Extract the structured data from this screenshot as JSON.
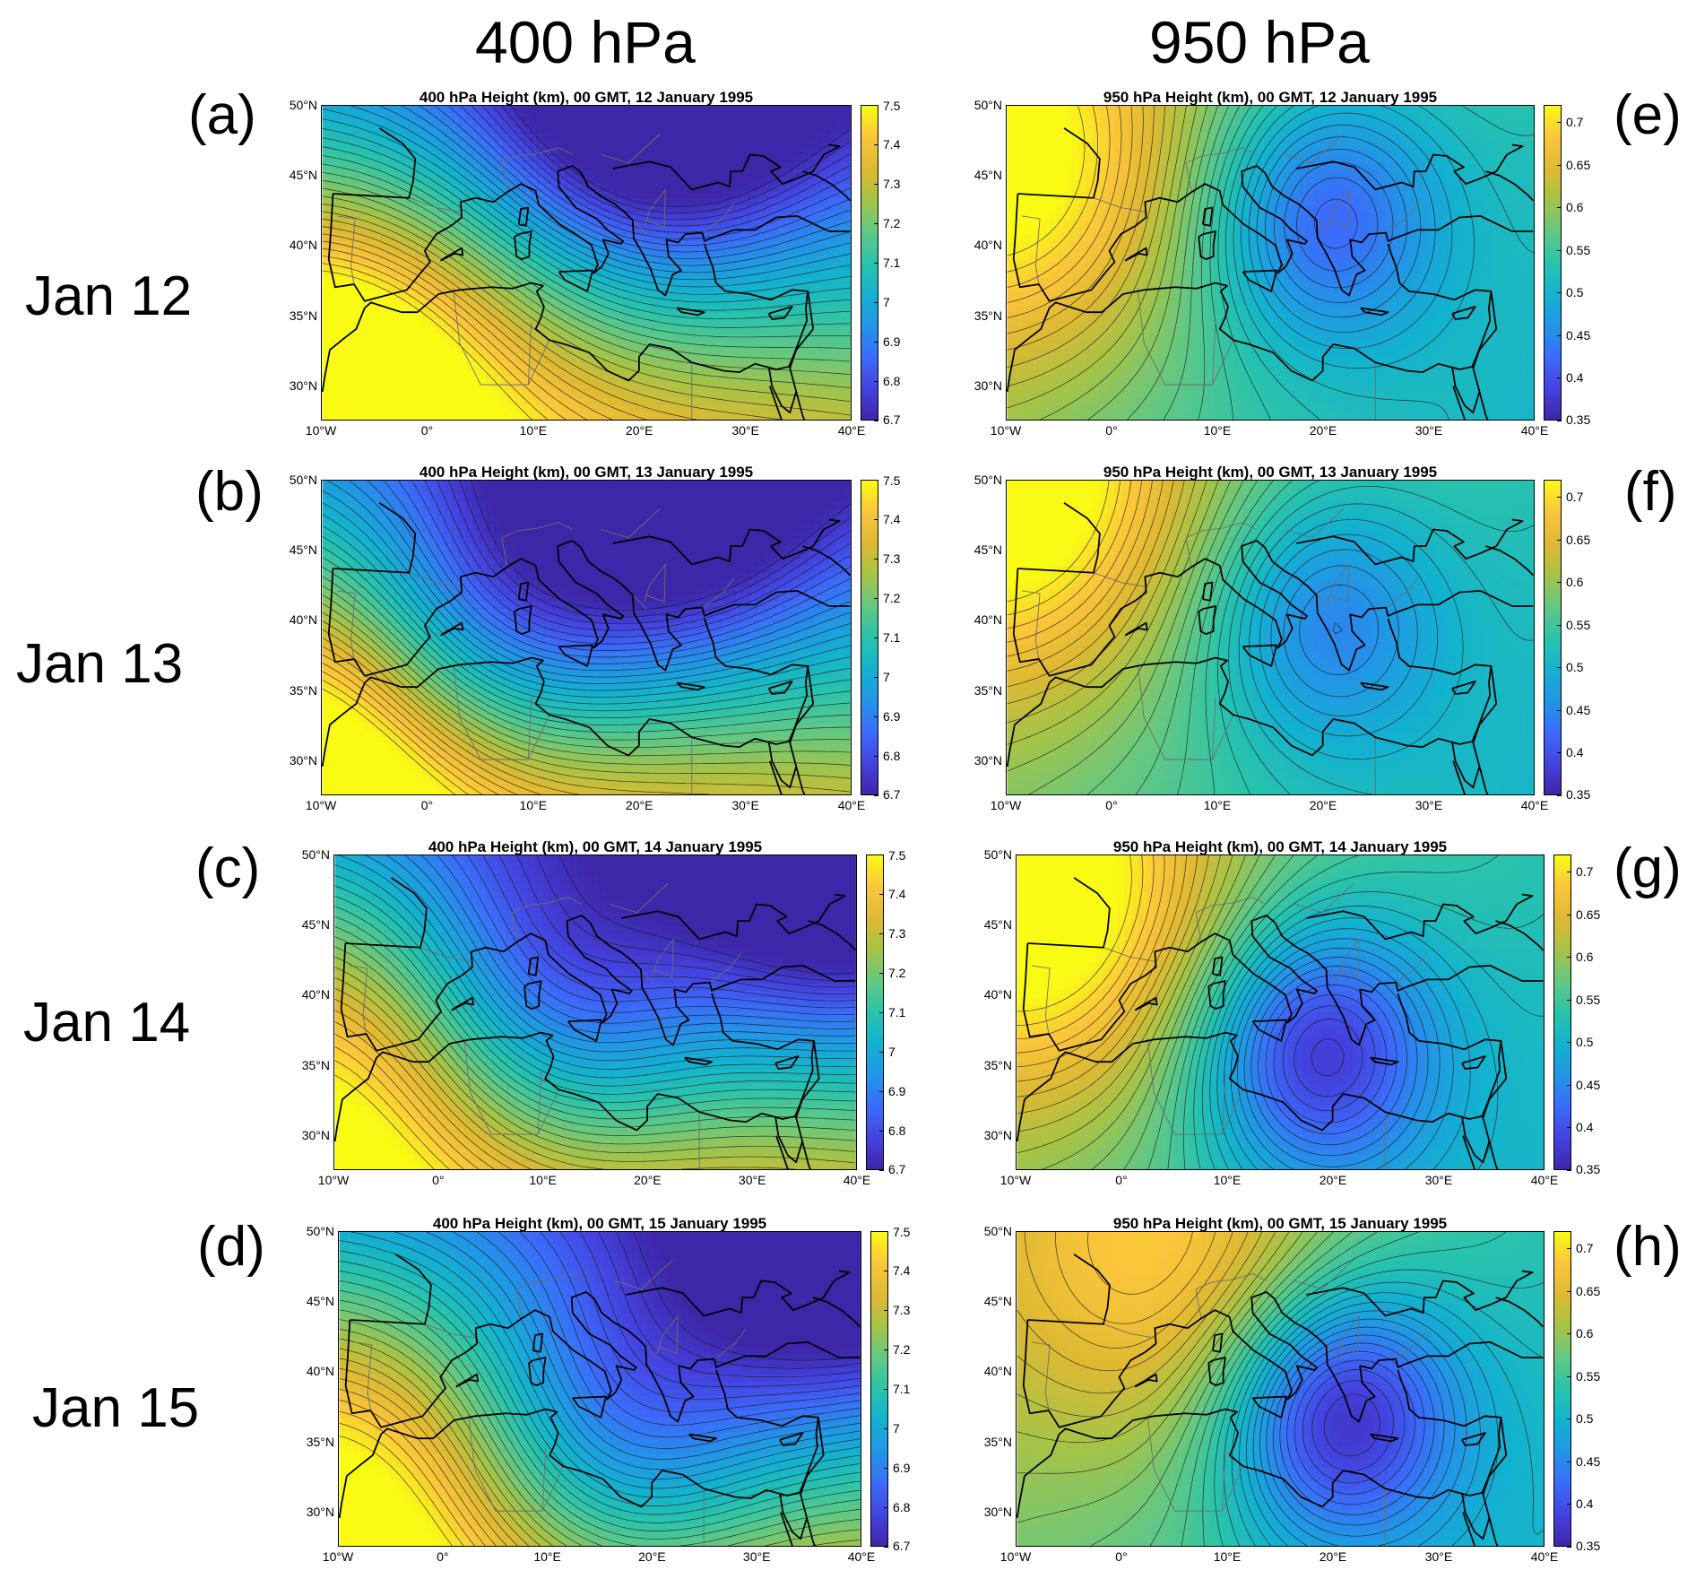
{
  "column_titles": [
    "400 hPa",
    "950 hPa"
  ],
  "row_labels": [
    "Jan 12",
    "Jan 13",
    "Jan 14",
    "Jan 15"
  ],
  "colors": {
    "colormap": [
      "#3e26a8",
      "#4443e0",
      "#3b6cf9",
      "#2296e6",
      "#13b2cf",
      "#2ac3ab",
      "#64c882",
      "#a6c347",
      "#dfb933",
      "#fbc63b",
      "#f9fb15"
    ],
    "contour": "#1a1a1a",
    "coast": "#000000",
    "border": "#6e6e6e"
  },
  "chart_data": [
    {
      "id": "a",
      "letter": "(a)",
      "level": "400",
      "title": "400 hPa Height (km), 00 GMT, 12 January 1995",
      "type": "heatmap",
      "variable": "geopotential height",
      "units": "km",
      "xlim": [
        -10,
        40
      ],
      "ylim": [
        27.5,
        50
      ],
      "x_ticks": [
        "10°W",
        "0°",
        "10°E",
        "20°E",
        "30°E",
        "40°E"
      ],
      "y_ticks": [
        "30°N",
        "35°N",
        "40°N",
        "45°N",
        "50°N"
      ],
      "clim": [
        6.7,
        7.5
      ],
      "colorbar_ticks": [
        "6.7",
        "6.8",
        "6.9",
        "7",
        "7.1",
        "7.2",
        "7.3",
        "7.4",
        "7.5"
      ],
      "features": [
        {
          "kind": "low",
          "lon": 22,
          "lat": 51,
          "value": 6.7
        },
        {
          "kind": "high",
          "lon": -10,
          "lat": 30,
          "value": 7.5
        }
      ]
    },
    {
      "id": "b",
      "letter": "(b)",
      "level": "400",
      "title": "400 hPa Height (km), 00 GMT, 13 January 1995",
      "type": "heatmap",
      "variable": "geopotential height",
      "units": "km",
      "xlim": [
        -10,
        40
      ],
      "ylim": [
        27.5,
        50
      ],
      "x_ticks": [
        "10°W",
        "0°",
        "10°E",
        "20°E",
        "30°E",
        "40°E"
      ],
      "y_ticks": [
        "30°N",
        "35°N",
        "40°N",
        "45°N",
        "50°N"
      ],
      "clim": [
        6.7,
        7.5
      ],
      "colorbar_ticks": [
        "6.7",
        "6.8",
        "6.9",
        "7",
        "7.1",
        "7.2",
        "7.3",
        "7.4",
        "7.5"
      ],
      "features": [
        {
          "kind": "low",
          "lon": 22,
          "lat": 49,
          "value": 6.72
        },
        {
          "kind": "trough",
          "lon": 5,
          "lat": 39,
          "value": 6.9
        },
        {
          "kind": "high",
          "lon": -10,
          "lat": 31,
          "value": 7.42
        }
      ]
    },
    {
      "id": "c",
      "letter": "(c)",
      "level": "400",
      "title": "400 hPa Height (km), 00 GMT, 14 January 1995",
      "type": "heatmap",
      "variable": "geopotential height",
      "units": "km",
      "xlim": [
        -10,
        40
      ],
      "ylim": [
        27.5,
        50
      ],
      "x_ticks": [
        "10°W",
        "0°",
        "10°E",
        "20°E",
        "30°E",
        "40°E"
      ],
      "y_ticks": [
        "30°N",
        "35°N",
        "40°N",
        "45°N",
        "50°N"
      ],
      "clim": [
        6.7,
        7.5
      ],
      "colorbar_ticks": [
        "6.7",
        "6.8",
        "6.9",
        "7",
        "7.1",
        "7.2",
        "7.3",
        "7.4",
        "7.5"
      ],
      "features": [
        {
          "kind": "low",
          "lon": 11,
          "lat": 40,
          "value": 6.85
        },
        {
          "kind": "low",
          "lon": 38,
          "lat": 50,
          "value": 6.75
        },
        {
          "kind": "high",
          "lon": -9,
          "lat": 36,
          "value": 7.35
        }
      ]
    },
    {
      "id": "d",
      "letter": "(d)",
      "level": "400",
      "title": "400 hPa Height (km), 00 GMT, 15 January 1995",
      "type": "heatmap",
      "variable": "geopotential height",
      "units": "km",
      "xlim": [
        -10,
        40
      ],
      "ylim": [
        27.5,
        50
      ],
      "x_ticks": [
        "10°W",
        "0°",
        "10°E",
        "20°E",
        "30°E",
        "40°E"
      ],
      "y_ticks": [
        "30°N",
        "35°N",
        "40°N",
        "45°N",
        "50°N"
      ],
      "clim": [
        6.7,
        7.5
      ],
      "colorbar_ticks": [
        "6.7",
        "6.8",
        "6.9",
        "7",
        "7.1",
        "7.2",
        "7.3",
        "7.4",
        "7.5"
      ],
      "features": [
        {
          "kind": "low",
          "lon": 17,
          "lat": 35,
          "value": 6.85
        },
        {
          "kind": "low",
          "lon": 38,
          "lat": 49,
          "value": 6.78
        },
        {
          "kind": "high",
          "lon": -9,
          "lat": 34,
          "value": 7.35
        }
      ]
    },
    {
      "id": "e",
      "letter": "(e)",
      "level": "950",
      "title": "950 hPa Height (km), 00 GMT, 12 January 1995",
      "type": "heatmap",
      "variable": "geopotential height",
      "units": "km",
      "xlim": [
        -10,
        40
      ],
      "ylim": [
        27.5,
        50
      ],
      "x_ticks": [
        "10°W",
        "0°",
        "10°E",
        "20°E",
        "30°E",
        "40°E"
      ],
      "y_ticks": [
        "30°N",
        "35°N",
        "40°N",
        "45°N",
        "50°N"
      ],
      "clim": [
        0.35,
        0.72
      ],
      "colorbar_ticks": [
        "0.35",
        "0.4",
        "0.45",
        "0.5",
        "0.55",
        "0.6",
        "0.65",
        "0.7"
      ],
      "features": [
        {
          "kind": "low",
          "lon": 20,
          "lat": 42,
          "value": 0.42
        },
        {
          "kind": "high",
          "lon": -10,
          "lat": 46,
          "value": 0.7
        }
      ]
    },
    {
      "id": "f",
      "letter": "(f)",
      "level": "950",
      "title": "950 hPa Height (km), 00 GMT, 13 January 1995",
      "type": "heatmap",
      "variable": "geopotential height",
      "units": "km",
      "xlim": [
        -10,
        40
      ],
      "ylim": [
        27.5,
        50
      ],
      "x_ticks": [
        "10°W",
        "0°",
        "10°E",
        "20°E",
        "30°E",
        "40°E"
      ],
      "y_ticks": [
        "30°N",
        "35°N",
        "40°N",
        "45°N",
        "50°N"
      ],
      "clim": [
        0.35,
        0.72
      ],
      "colorbar_ticks": [
        "0.35",
        "0.4",
        "0.45",
        "0.5",
        "0.55",
        "0.6",
        "0.65",
        "0.7"
      ],
      "features": [
        {
          "kind": "low",
          "lon": 20,
          "lat": 40,
          "value": 0.45
        },
        {
          "kind": "high",
          "lon": -10,
          "lat": 50,
          "value": 0.72
        }
      ]
    },
    {
      "id": "g",
      "letter": "(g)",
      "level": "950",
      "title": "950 hPa Height (km), 00 GMT, 14 January 1995",
      "type": "heatmap",
      "variable": "geopotential height",
      "units": "km",
      "xlim": [
        -10,
        40
      ],
      "ylim": [
        27.5,
        50
      ],
      "x_ticks": [
        "10°W",
        "0°",
        "10°E",
        "20°E",
        "30°E",
        "40°E"
      ],
      "y_ticks": [
        "30°N",
        "35°N",
        "40°N",
        "45°N",
        "50°N"
      ],
      "clim": [
        0.35,
        0.72
      ],
      "colorbar_ticks": [
        "0.35",
        "0.4",
        "0.45",
        "0.5",
        "0.55",
        "0.6",
        "0.65",
        "0.7"
      ],
      "features": [
        {
          "kind": "low",
          "lon": 18.5,
          "lat": 36,
          "value": 0.38
        },
        {
          "kind": "high",
          "lon": -8,
          "lat": 47,
          "value": 0.72
        }
      ]
    },
    {
      "id": "h",
      "letter": "(h)",
      "level": "950",
      "title": "950 hPa Height (km), 00 GMT, 15 January 1995",
      "type": "heatmap",
      "variable": "geopotential height",
      "units": "km",
      "xlim": [
        -10,
        40
      ],
      "ylim": [
        27.5,
        50
      ],
      "x_ticks": [
        "10°W",
        "0°",
        "10°E",
        "20°E",
        "30°E",
        "40°E"
      ],
      "y_ticks": [
        "30°N",
        "35°N",
        "40°N",
        "45°N",
        "50°N"
      ],
      "clim": [
        0.35,
        0.72
      ],
      "colorbar_ticks": [
        "0.35",
        "0.4",
        "0.45",
        "0.5",
        "0.55",
        "0.6",
        "0.65",
        "0.7"
      ],
      "features": [
        {
          "kind": "low",
          "lon": 20.5,
          "lat": 37,
          "value": 0.36
        },
        {
          "kind": "high",
          "lon": 5,
          "lat": 48,
          "value": 0.66
        }
      ]
    }
  ]
}
